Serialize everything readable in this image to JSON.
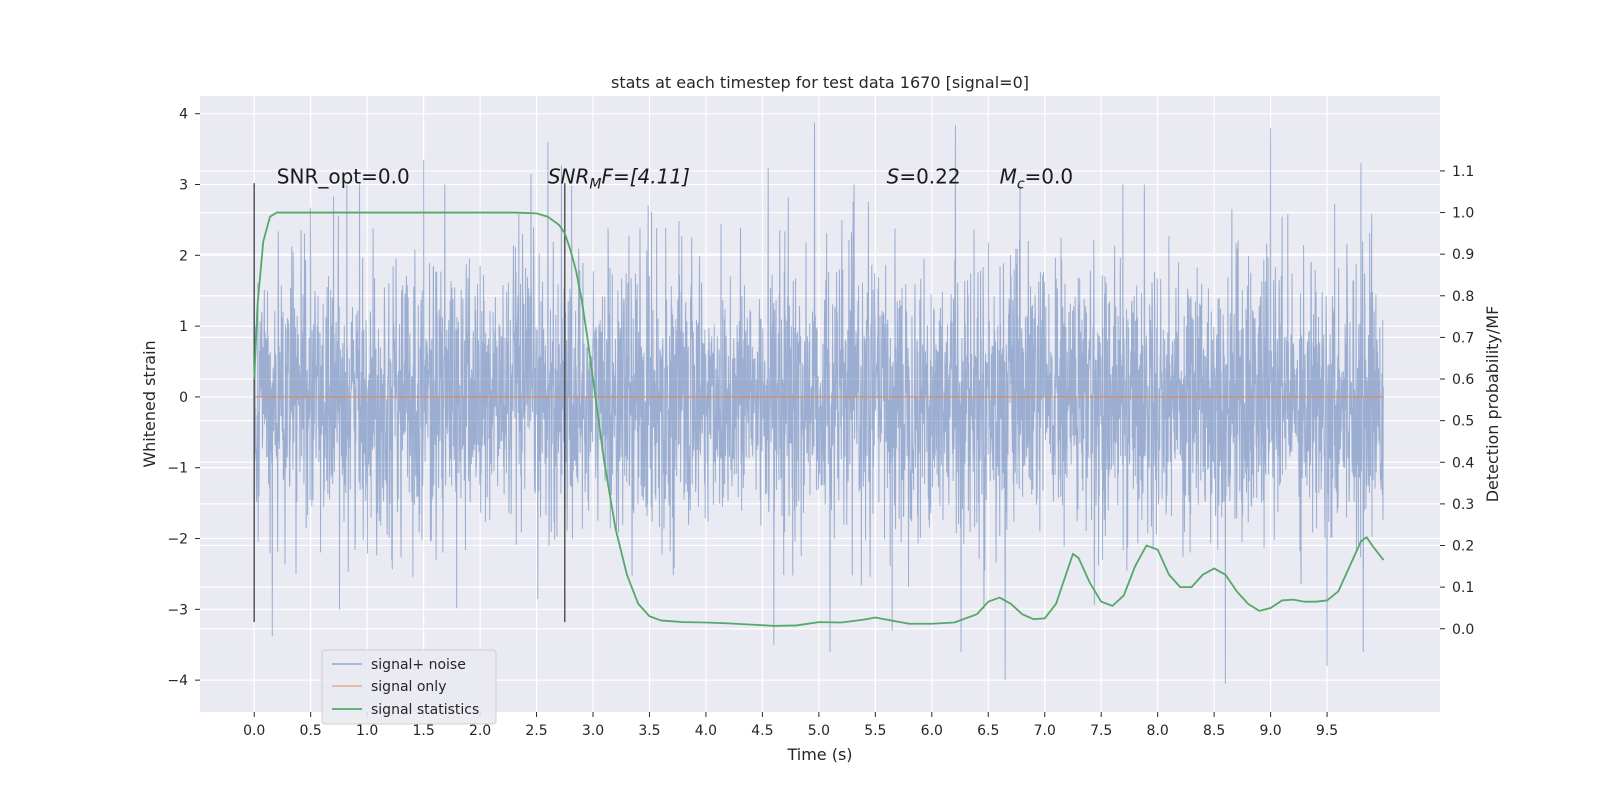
{
  "chart_data": {
    "type": "line",
    "title": "stats at each timestep for test data 1670 [signal=0]",
    "xlabel": "Time (s)",
    "ylabel": "Whitened strain",
    "y2label": "Detection probability/MF",
    "xlim": [
      -0.48,
      10.5
    ],
    "ylim": [
      -4.45,
      4.25
    ],
    "y2lim": [
      -0.2,
      1.28
    ],
    "xticks": [
      "0.0",
      "0.5",
      "1.0",
      "1.5",
      "2.0",
      "2.5",
      "3.0",
      "3.5",
      "4.0",
      "4.5",
      "5.0",
      "5.5",
      "6.0",
      "6.5",
      "7.0",
      "7.5",
      "8.0",
      "8.5",
      "9.0",
      "9.5"
    ],
    "yticks": [
      "4",
      "3",
      "2",
      "1",
      "0",
      "−1",
      "−2",
      "−3",
      "−4"
    ],
    "y2ticks": [
      "1.1",
      "1.0",
      "0.9",
      "0.8",
      "0.7",
      "0.6",
      "0.5",
      "0.4",
      "0.3",
      "0.2",
      "0.1",
      "0.0"
    ],
    "grid": true,
    "legend_position": "lower-left",
    "annotations": [
      {
        "text": "SNR_opt=0.0",
        "x": 0.2,
        "y": 3.0
      },
      {
        "prefix": "SNR",
        "sub": "M",
        "suffix": "F=[4.11]",
        "x": 2.6,
        "y": 3.0
      },
      {
        "prefix": "S",
        "sub": "",
        "suffix": "=0.22",
        "x": 5.6,
        "y": 3.0
      },
      {
        "prefix": "M",
        "sub": "c",
        "suffix": "=0.0",
        "x": 6.6,
        "y": 3.0
      }
    ],
    "vlines": [
      {
        "x": 0.0,
        "ymin": -3.18,
        "ymax": 3.02
      },
      {
        "x": 2.75,
        "ymin": -3.18,
        "ymax": 3.02
      }
    ],
    "series": [
      {
        "name": "signal+ noise",
        "color": "#4c72b0",
        "description_values": "dense noise from 0 to 10 s, roughly Gaussian, amplitude about ±2.5, peaks near ±3.9",
        "t_range": [
          0.0,
          10.0
        ],
        "peaks": [
          {
            "x": 0.16,
            "y": -3.38
          },
          {
            "x": 0.82,
            "y": 3.0
          },
          {
            "x": 1.5,
            "y": 3.35
          },
          {
            "x": 2.45,
            "y": 3.15
          },
          {
            "x": 2.6,
            "y": 3.6
          },
          {
            "x": 2.72,
            "y": 3.27
          },
          {
            "x": 4.55,
            "y": 3.24
          },
          {
            "x": 4.6,
            "y": -3.5
          },
          {
            "x": 4.96,
            "y": 3.87
          },
          {
            "x": 5.1,
            "y": -3.6
          },
          {
            "x": 5.65,
            "y": -3.3
          },
          {
            "x": 6.21,
            "y": 3.84
          },
          {
            "x": 6.26,
            "y": -3.6
          },
          {
            "x": 6.65,
            "y": -4.0
          },
          {
            "x": 8.6,
            "y": -4.05
          },
          {
            "x": 9.0,
            "y": 3.8
          },
          {
            "x": 9.5,
            "y": -3.8
          },
          {
            "x": 9.8,
            "y": 3.3
          },
          {
            "x": 9.82,
            "y": -3.6
          }
        ]
      },
      {
        "name": "signal only",
        "color": "#dd8452",
        "x": [
          0.0,
          10.0
        ],
        "y": [
          0.0,
          0.0
        ]
      },
      {
        "name": "signal statistics",
        "color": "#55a868",
        "axis": "right",
        "x": [
          0.0,
          0.03,
          0.08,
          0.14,
          0.2,
          0.3,
          0.5,
          1.0,
          1.5,
          2.0,
          2.3,
          2.5,
          2.6,
          2.7,
          2.75,
          2.8,
          2.85,
          2.9,
          2.95,
          3.0,
          3.05,
          3.1,
          3.15,
          3.2,
          3.3,
          3.4,
          3.5,
          3.6,
          3.8,
          4.0,
          4.2,
          4.4,
          4.6,
          4.8,
          5.0,
          5.2,
          5.4,
          5.5,
          5.6,
          5.8,
          6.0,
          6.2,
          6.4,
          6.5,
          6.6,
          6.7,
          6.8,
          6.9,
          7.0,
          7.1,
          7.2,
          7.25,
          7.3,
          7.4,
          7.5,
          7.6,
          7.7,
          7.8,
          7.9,
          8.0,
          8.1,
          8.2,
          8.3,
          8.4,
          8.5,
          8.6,
          8.7,
          8.8,
          8.9,
          9.0,
          9.1,
          9.2,
          9.3,
          9.4,
          9.5,
          9.6,
          9.7,
          9.8,
          9.85,
          9.9,
          10.0
        ],
        "y": [
          0.6,
          0.78,
          0.93,
          0.99,
          1.0,
          1.0,
          1.0,
          1.0,
          1.0,
          1.0,
          1.0,
          0.998,
          0.99,
          0.97,
          0.95,
          0.91,
          0.86,
          0.79,
          0.7,
          0.6,
          0.5,
          0.4,
          0.32,
          0.24,
          0.13,
          0.06,
          0.03,
          0.02,
          0.016,
          0.015,
          0.013,
          0.01,
          0.007,
          0.008,
          0.016,
          0.015,
          0.022,
          0.027,
          0.022,
          0.012,
          0.012,
          0.015,
          0.035,
          0.065,
          0.075,
          0.06,
          0.035,
          0.023,
          0.025,
          0.06,
          0.14,
          0.18,
          0.17,
          0.11,
          0.065,
          0.055,
          0.08,
          0.15,
          0.2,
          0.19,
          0.13,
          0.1,
          0.1,
          0.13,
          0.145,
          0.13,
          0.09,
          0.06,
          0.043,
          0.05,
          0.068,
          0.07,
          0.065,
          0.065,
          0.068,
          0.09,
          0.15,
          0.21,
          0.22,
          0.2,
          0.165
        ]
      }
    ]
  }
}
